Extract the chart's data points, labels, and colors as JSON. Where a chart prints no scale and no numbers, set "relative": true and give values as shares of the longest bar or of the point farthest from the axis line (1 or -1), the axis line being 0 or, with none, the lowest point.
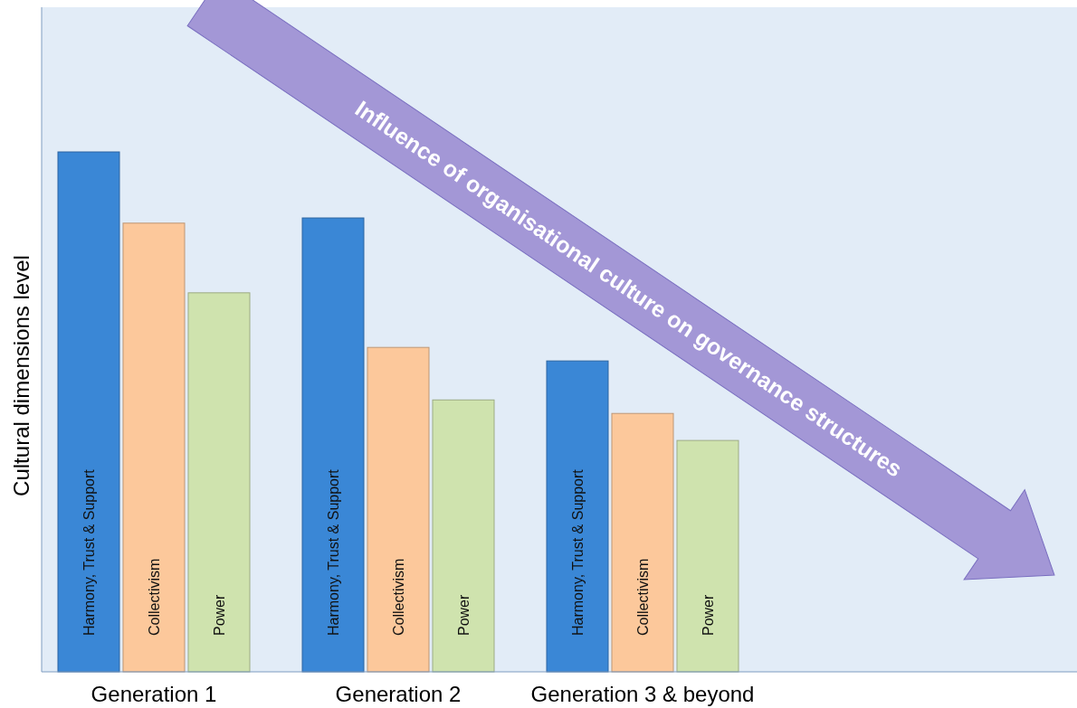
{
  "chart_data": {
    "type": "bar",
    "relative": true,
    "ylabel": "Cultural dimensions level",
    "categories": [
      "Generation 1",
      "Generation 2",
      "Generation 3  & beyond"
    ],
    "series": [
      {
        "name": "Harmony, Trust & Support",
        "color": "#3a87d6",
        "values": [
          1,
          0.873,
          0.598
        ]
      },
      {
        "name": "Collectivism",
        "color": "#fcc89b",
        "values": [
          0.863,
          0.624,
          0.497
        ]
      },
      {
        "name": "Power",
        "color": "#cfe3ae",
        "values": [
          0.729,
          0.523,
          0.445
        ]
      }
    ],
    "annotations": [
      "Influence of  organisational culture on governance structures"
    ]
  }
}
